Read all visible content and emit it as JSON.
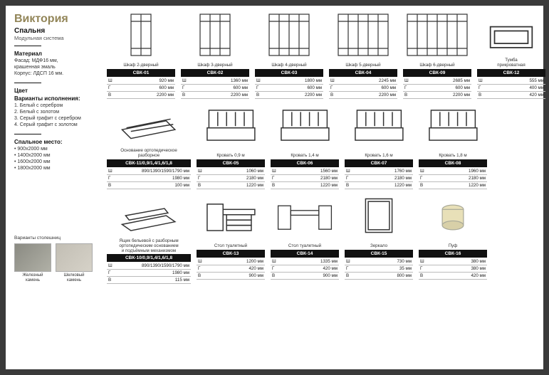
{
  "header": {
    "title": "Виктория",
    "subtitle": "Спальня",
    "subtitle2": "Модульная система"
  },
  "material": {
    "title": "Материал",
    "lines": "Фасад: МДФ16 мм,\nкрашенная эмаль\nКорпус: ЛДСП 16 мм."
  },
  "color": {
    "title": "Цвет",
    "subtitle": "Варианты исполнения:",
    "items": "1. Белый с серебром\n2. Белый с золотом\n3. Серый графит с серебром\n4. Серый графит с золотом"
  },
  "bedsize": {
    "title": "Спальное место:",
    "items": "• 900x2000 мм\n• 1400x2000 мм\n• 1600x2000 мм\n• 1800x2000 мм"
  },
  "swatches": {
    "title": "Варианты столешниц",
    "a": "Железный\nкамень",
    "b": "Шелковый\nкамень"
  },
  "rows": [
    [
      {
        "name": "Шкаф 2-дверный",
        "code": "СВК-01",
        "w": "920 мм",
        "d": "600 мм",
        "h": "2200 мм",
        "icon": "wardrobe2"
      },
      {
        "name": "Шкаф 3-дверный",
        "code": "СВК-02",
        "w": "1360 мм",
        "d": "600 мм",
        "h": "2200 мм",
        "icon": "wardrobe3"
      },
      {
        "name": "Шкаф 4-дверный",
        "code": "СВК-03",
        "w": "1800 мм",
        "d": "600 мм",
        "h": "2200 мм",
        "icon": "wardrobe4"
      },
      {
        "name": "Шкаф 5-дверный",
        "code": "СВК-04",
        "w": "2245 мм",
        "d": "600 мм",
        "h": "2200 мм",
        "icon": "wardrobe5"
      },
      {
        "name": "Шкаф 6-дверный",
        "code": "СВК-09",
        "w": "2685 мм",
        "d": "600 мм",
        "h": "2200 мм",
        "icon": "wardrobe6"
      },
      {
        "name": "Тумба\nприкроватная",
        "code": "СВК-12",
        "w": "555 мм",
        "d": "400 мм",
        "h": "420 мм",
        "icon": "nightstand"
      }
    ],
    [
      {
        "name": "Основание ортопедическое\nразборное",
        "code": "СВК-11/0,9/1,4/1,6/1,8",
        "w": "890/1390/1590/1790 мм",
        "d": "1980 мм",
        "h": "100 мм",
        "icon": "base",
        "wide": true
      },
      {
        "name": "Кровать 0,9 м",
        "code": "СВК-05",
        "w": "1060 мм",
        "d": "2180 мм",
        "h": "1220 мм",
        "icon": "bed"
      },
      {
        "name": "Кровать 1,4 м",
        "code": "СВК-06",
        "w": "1560 мм",
        "d": "2180 мм",
        "h": "1220 мм",
        "icon": "bed"
      },
      {
        "name": "Кровать 1,6 м",
        "code": "СВК-07",
        "w": "1760 мм",
        "d": "2180 мм",
        "h": "1220 мм",
        "icon": "bed"
      },
      {
        "name": "Кровать 1,8 м",
        "code": "СВК-08",
        "w": "1960 мм",
        "d": "2180 мм",
        "h": "1220 мм",
        "icon": "bed"
      }
    ],
    [
      {
        "name": "Ящик бельевой с разборным\nортопедическим основанием\nи подъёмным механизмом",
        "code": "СВК-10/0,9/1,4/1,6/1,8",
        "w": "890/1390/1590/1790 мм",
        "d": "1980 мм",
        "h": "115 мм",
        "icon": "drawer",
        "wide": true
      },
      {
        "name": "Стол туалетный",
        "code": "СВК-13",
        "w": "1200 мм",
        "d": "420 мм",
        "h": "900 мм",
        "icon": "vanity1"
      },
      {
        "name": "Стол туалетный",
        "code": "СВК-14",
        "w": "1335 мм",
        "d": "420 мм",
        "h": "900 мм",
        "icon": "vanity2"
      },
      {
        "name": "Зеркало",
        "code": "СВК-15",
        "w": "730 мм",
        "d": "35 мм",
        "h": "800 мм",
        "icon": "mirror"
      },
      {
        "name": "Пуф",
        "code": "СВК-16",
        "w": "380 мм",
        "d": "380 мм",
        "h": "420 мм",
        "icon": "pouf"
      }
    ]
  ]
}
